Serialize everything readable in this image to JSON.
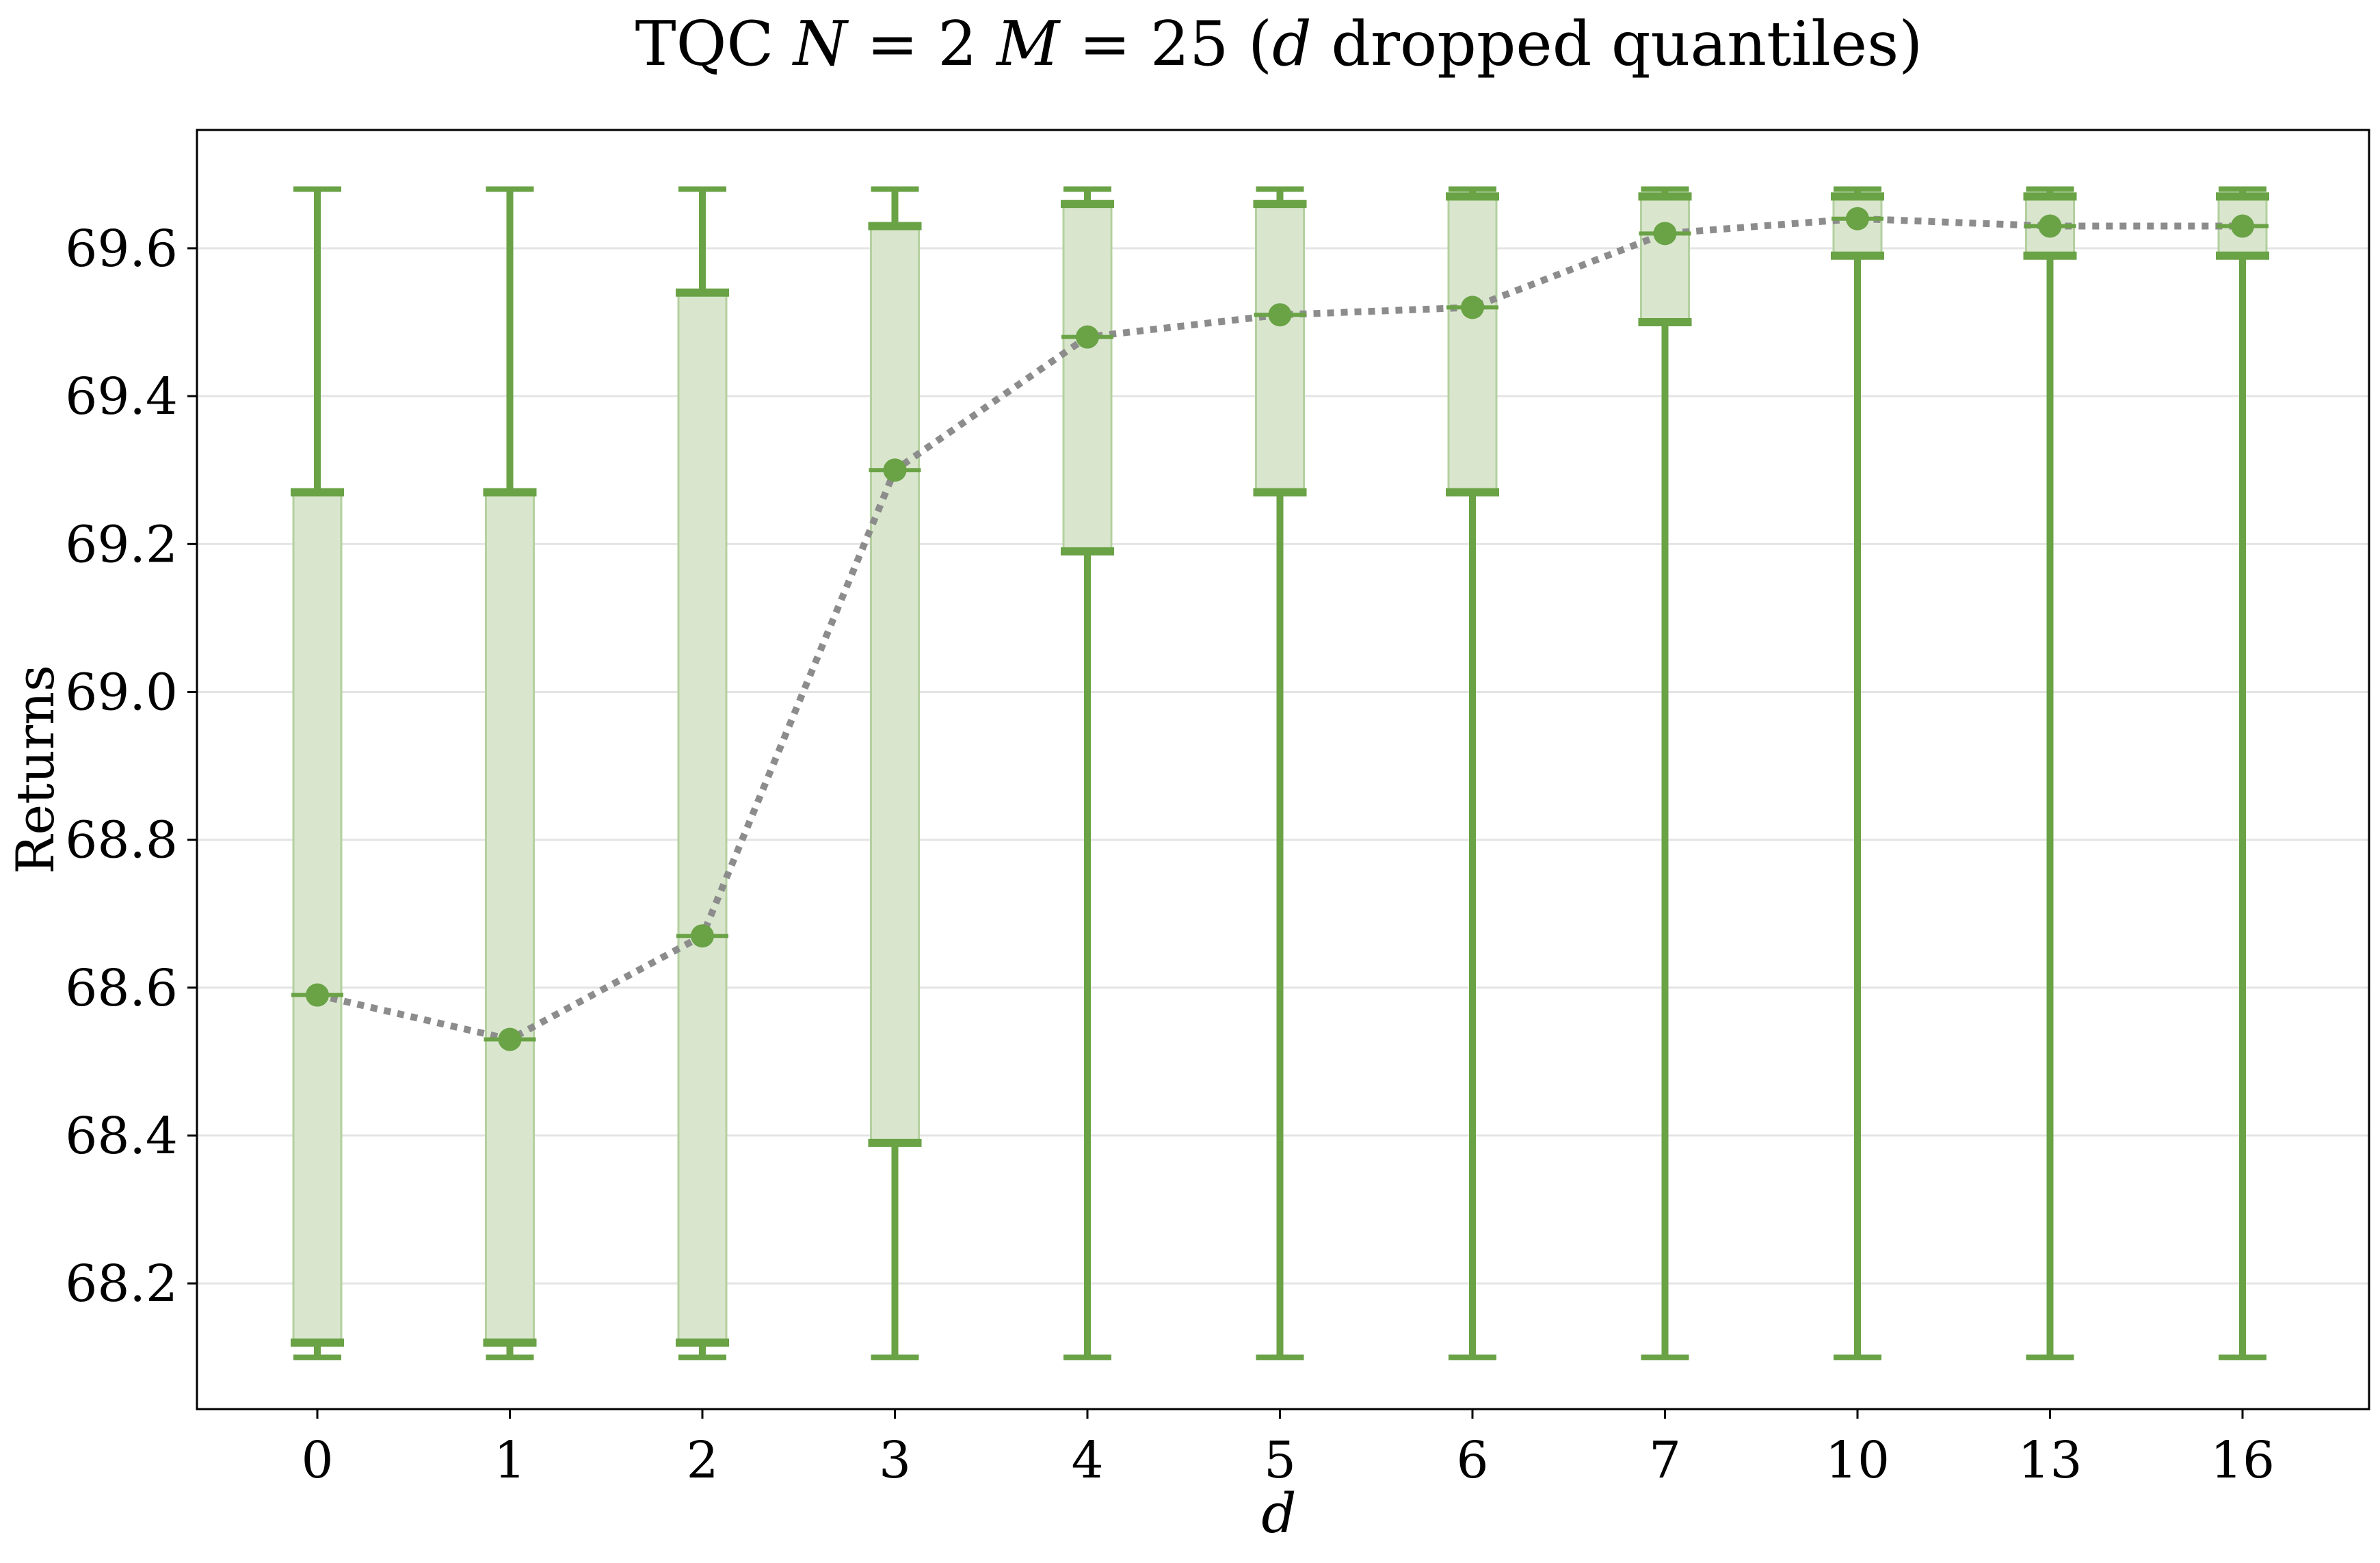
{
  "chart_data": {
    "type": "boxplot",
    "title": {
      "prefix": "TQC ",
      "n_symbol": "N",
      "n_eq": " = 2 ",
      "m_symbol": "M",
      "m_eq": " = 25 (",
      "d_symbol": "d",
      "suffix": " dropped quantiles)"
    },
    "xlabel": "d",
    "ylabel": "Returns",
    "categories": [
      "0",
      "1",
      "2",
      "3",
      "4",
      "5",
      "6",
      "7",
      "10",
      "13",
      "16"
    ],
    "ylim": [
      68.03,
      69.76
    ],
    "yticks": [
      "68.2",
      "68.4",
      "68.6",
      "68.8",
      "69.0",
      "69.2",
      "69.4",
      "69.6"
    ],
    "grid": "horizontal",
    "colors": {
      "box_fill": "#d9e6cd",
      "box_edge": "#b4d0a0",
      "whisker": "#6aa246",
      "marker": "#6aa246",
      "trend_line": "#8c8c8c",
      "grid": "#e4e4e4"
    },
    "series": [
      {
        "boxes": [
          {
            "min": 68.1,
            "q1": 68.12,
            "median": 68.59,
            "q3": 69.27,
            "max": 69.68
          },
          {
            "min": 68.1,
            "q1": 68.12,
            "median": 68.53,
            "q3": 69.27,
            "max": 69.68
          },
          {
            "min": 68.1,
            "q1": 68.12,
            "median": 68.67,
            "q3": 69.54,
            "max": 69.68
          },
          {
            "min": 68.1,
            "q1": 68.39,
            "median": 69.3,
            "q3": 69.63,
            "max": 69.68
          },
          {
            "min": 68.1,
            "q1": 69.19,
            "median": 69.48,
            "q3": 69.66,
            "max": 69.68
          },
          {
            "min": 68.1,
            "q1": 69.27,
            "median": 69.51,
            "q3": 69.66,
            "max": 69.68
          },
          {
            "min": 68.1,
            "q1": 69.27,
            "median": 69.52,
            "q3": 69.67,
            "max": 69.68
          },
          {
            "min": 68.1,
            "q1": 69.5,
            "median": 69.62,
            "q3": 69.67,
            "max": 69.68
          },
          {
            "min": 68.1,
            "q1": 69.59,
            "median": 69.64,
            "q3": 69.67,
            "max": 69.68
          },
          {
            "min": 68.1,
            "q1": 69.59,
            "median": 69.63,
            "q3": 69.67,
            "max": 69.68
          },
          {
            "min": 68.1,
            "q1": 69.59,
            "median": 69.63,
            "q3": 69.67,
            "max": 69.68
          }
        ],
        "means": [
          68.59,
          68.53,
          68.67,
          69.3,
          69.48,
          69.51,
          69.52,
          69.62,
          69.64,
          69.63,
          69.63
        ]
      }
    ]
  }
}
